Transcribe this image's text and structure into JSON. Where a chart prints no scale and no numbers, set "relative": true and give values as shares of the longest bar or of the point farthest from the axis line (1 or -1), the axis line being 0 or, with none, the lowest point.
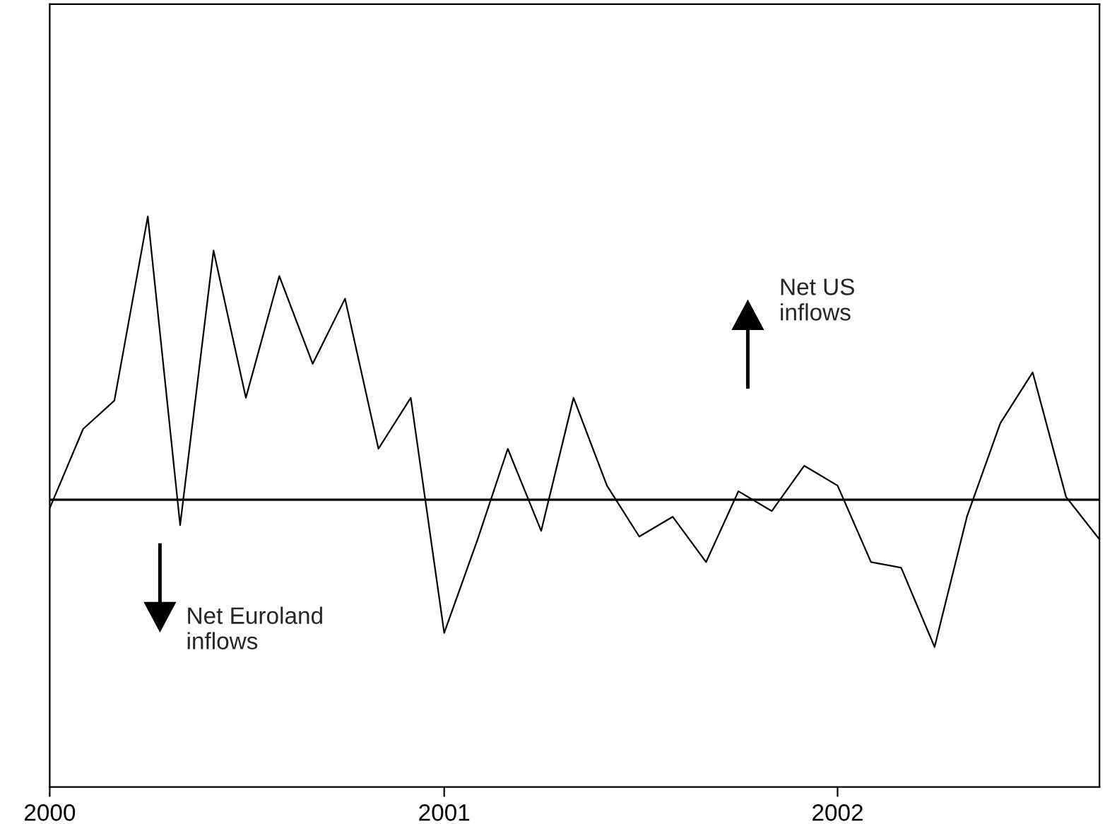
{
  "chart_data": {
    "type": "line",
    "relative": true,
    "x": [
      "2000-01",
      "2000-02",
      "2000-03",
      "2000-04",
      "2000-05",
      "2000-06",
      "2000-07",
      "2000-08",
      "2000-09",
      "2000-10",
      "2000-11",
      "2000-12",
      "2001-01",
      "2001-02",
      "2001-03",
      "2001-04",
      "2001-05",
      "2001-06",
      "2001-07",
      "2001-08",
      "2001-09",
      "2001-10",
      "2001-11",
      "2001-12",
      "2002-01",
      "2002-02",
      "2002-03",
      "2002-04",
      "2002-05",
      "2002-06",
      "2002-07",
      "2002-08",
      "2002-09"
    ],
    "series": [
      {
        "color": "#000000",
        "values": [
          -0.03,
          0.25,
          0.35,
          1,
          -0.09,
          0.88,
          0.36,
          0.79,
          0.48,
          0.71,
          0.18,
          0.36,
          -0.47,
          -0.14,
          0.18,
          -0.11,
          0.36,
          0.05,
          -0.13,
          -0.06,
          -0.22,
          0.03,
          -0.04,
          0.12,
          0.05,
          -0.22,
          -0.24,
          -0.52,
          -0.06,
          0.27,
          0.45,
          0.01,
          -0.14
        ]
      }
    ],
    "xlim": [
      "2000-01",
      "2002-09"
    ],
    "xticks": [
      {
        "value": "2000-01",
        "label": "2000"
      },
      {
        "value": "2001-01",
        "label": "2001"
      },
      {
        "value": "2002-01",
        "label": "2002"
      }
    ],
    "annotations": [
      "Net US\ninflows",
      "Net Euroland\ninflows"
    ],
    "grid": false,
    "legend": false
  }
}
